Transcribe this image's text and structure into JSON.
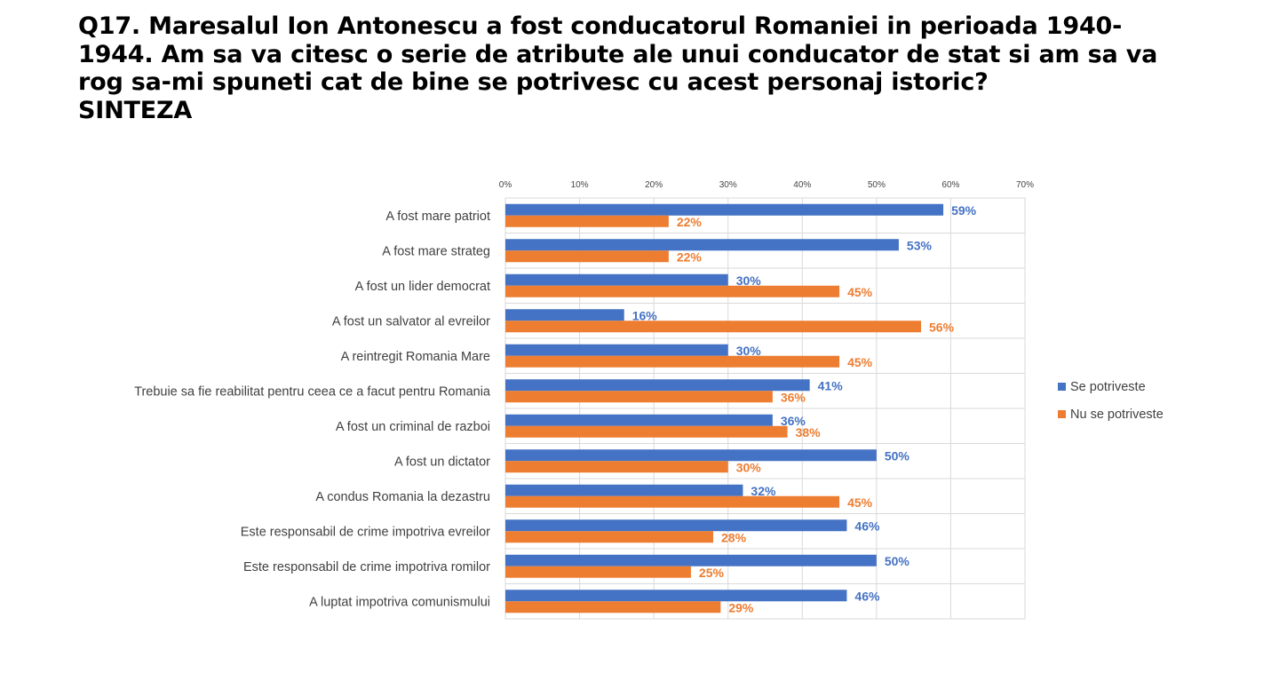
{
  "title_lines": [
    "Q17. Maresalul Ion Antonescu a fost conducatorul Romaniei in perioada 1940-",
    "1944. Am sa va citesc o serie de atribute ale unui conducator de stat si am sa va",
    "rog sa-mi spuneti cat de bine se potrivesc cu acest personaj istoric?",
    "SINTEZA"
  ],
  "chart_data": {
    "type": "bar",
    "orientation": "horizontal",
    "xlim": [
      0,
      70
    ],
    "xticks": [
      "0%",
      "10%",
      "20%",
      "30%",
      "40%",
      "50%",
      "60%",
      "70%"
    ],
    "grid": true,
    "legend_position": "right",
    "categories": [
      "A fost mare patriot",
      "A fost mare strateg",
      "A fost un lider democrat",
      "A fost un salvator al evreilor",
      "A reintregit Romania Mare",
      "Trebuie sa fie reabilitat pentru ceea ce a facut pentru Romania",
      "A fost un criminal de razboi",
      "A fost un dictator",
      "A condus Romania la dezastru",
      "Este responsabil de crime impotriva evreilor",
      "Este responsabil de crime impotriva romilor",
      "A luptat impotriva comunismului"
    ],
    "series": [
      {
        "name": "Se potriveste",
        "color": "#4472C4",
        "values": [
          59,
          53,
          30,
          16,
          30,
          41,
          36,
          50,
          32,
          46,
          50,
          46
        ],
        "labels": [
          "59%",
          "53%",
          "30%",
          "16%",
          "30%",
          "41%",
          "36%",
          "50%",
          "32%",
          "46%",
          "50%",
          "46%"
        ]
      },
      {
        "name": "Nu se potriveste",
        "color": "#ED7D31",
        "values": [
          22,
          22,
          45,
          56,
          45,
          36,
          38,
          30,
          45,
          28,
          25,
          29
        ],
        "labels": [
          "22%",
          "22%",
          "45%",
          "56%",
          "45%",
          "36%",
          "38%",
          "30%",
          "45%",
          "28%",
          "25%",
          "29%"
        ]
      }
    ]
  }
}
